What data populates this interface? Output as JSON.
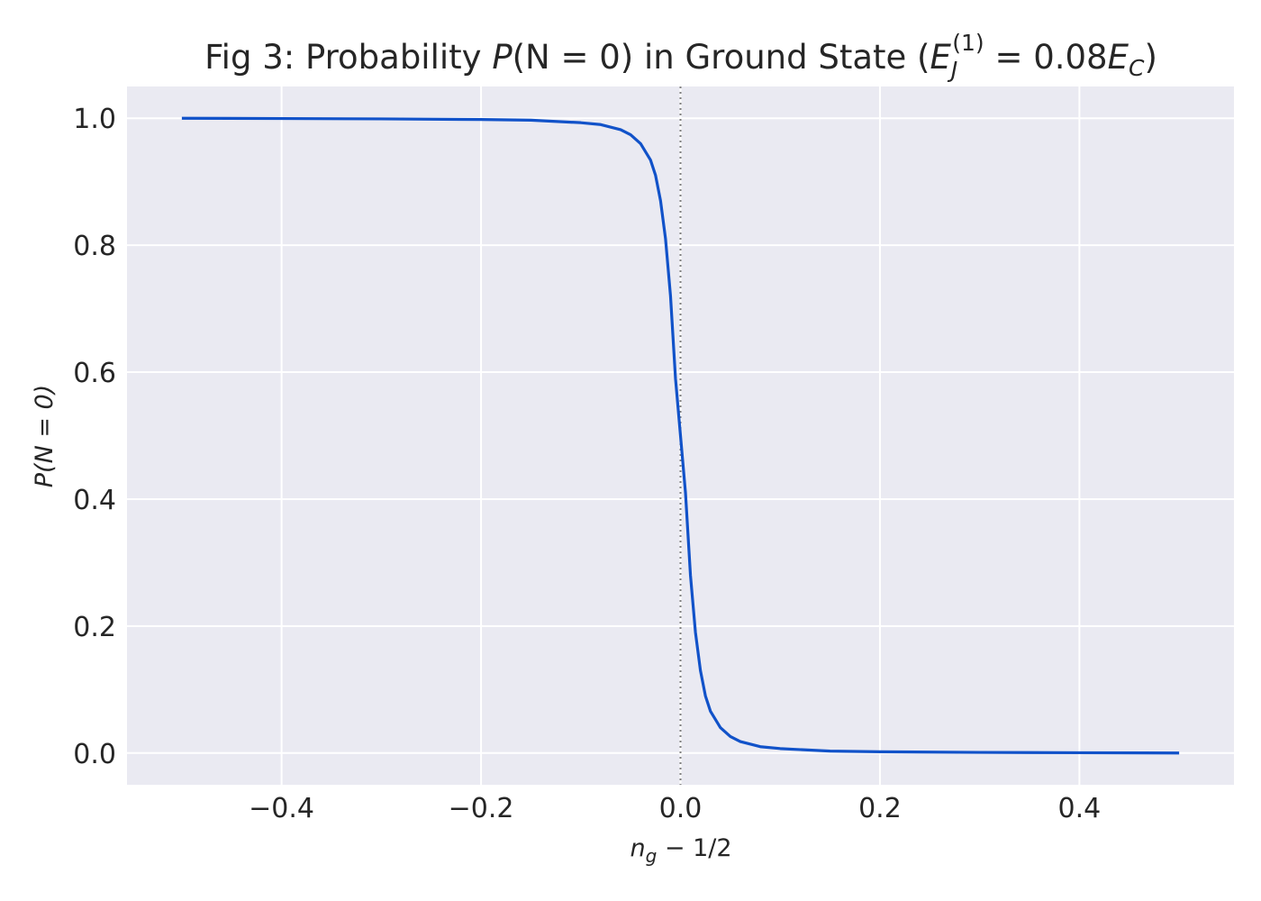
{
  "chart_data": {
    "type": "line",
    "title": {
      "prefix": "Fig 3: Probability ",
      "p_symbol": "P",
      "p_args": "(N = 0)",
      "middle": " in Ground State (",
      "ej_symbol": "E",
      "ej_sub": "J",
      "ej_sup": "(1)",
      "ej_rhs": " = 0.08",
      "ec_symbol": "E",
      "ec_sub": "C",
      "suffix": ")"
    },
    "xlabel": {
      "var": "n",
      "sub": "g",
      "rest": " − 1/2"
    },
    "ylabel": "P(N = 0)",
    "xlim": [
      -0.555,
      0.555
    ],
    "ylim": [
      -0.05,
      1.05
    ],
    "x_ticks": [
      -0.4,
      -0.2,
      0.0,
      0.2,
      0.4
    ],
    "x_tick_labels": [
      "−0.4",
      "−0.2",
      "0.0",
      "0.2",
      "0.4"
    ],
    "y_ticks": [
      0.0,
      0.2,
      0.4,
      0.6,
      0.8,
      1.0
    ],
    "y_tick_labels": [
      "0.0",
      "0.2",
      "0.4",
      "0.6",
      "0.8",
      "1.0"
    ],
    "grid": true,
    "reference_line": {
      "x": 0.0,
      "style": "dotted",
      "color": "#808080"
    },
    "series": [
      {
        "color": "#1152c9",
        "x": [
          -0.5,
          -0.4,
          -0.3,
          -0.2,
          -0.15,
          -0.1,
          -0.08,
          -0.06,
          -0.05,
          -0.04,
          -0.03,
          -0.025,
          -0.02,
          -0.015,
          -0.01,
          -0.005,
          0.0,
          0.005,
          0.01,
          0.015,
          0.02,
          0.025,
          0.03,
          0.04,
          0.05,
          0.06,
          0.08,
          0.1,
          0.15,
          0.2,
          0.3,
          0.4,
          0.5
        ],
        "values": [
          1.0,
          0.9995,
          0.999,
          0.998,
          0.997,
          0.993,
          0.99,
          0.982,
          0.974,
          0.96,
          0.934,
          0.91,
          0.87,
          0.81,
          0.72,
          0.59,
          0.5,
          0.41,
          0.28,
          0.19,
          0.13,
          0.09,
          0.066,
          0.04,
          0.026,
          0.018,
          0.01,
          0.007,
          0.003,
          0.002,
          0.001,
          0.0005,
          0.0
        ]
      }
    ]
  }
}
